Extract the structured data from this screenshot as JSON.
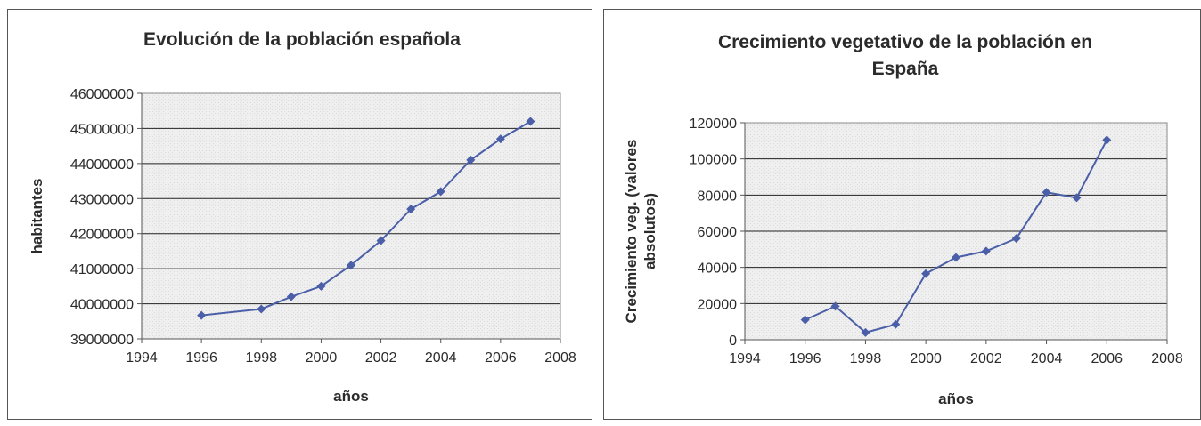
{
  "chart_data": [
    {
      "type": "line",
      "title": "Evolución de la población española",
      "xlabel": "años",
      "ylabel": "habitantes",
      "xlim": [
        1994,
        2008
      ],
      "ylim": [
        39000000,
        46000000
      ],
      "xticks": [
        1994,
        1996,
        1998,
        2000,
        2002,
        2004,
        2006,
        2008
      ],
      "yticks": [
        39000000,
        40000000,
        41000000,
        42000000,
        43000000,
        44000000,
        45000000,
        46000000
      ],
      "grid": true,
      "series": [
        {
          "color": "#4a5fa8",
          "x": [
            1996,
            1998,
            1999,
            2000,
            2001,
            2002,
            2003,
            2004,
            2005,
            2006,
            2007
          ],
          "y": [
            39670000,
            39850000,
            40200000,
            40500000,
            41100000,
            41800000,
            42700000,
            43200000,
            44100000,
            44700000,
            45200000
          ]
        }
      ]
    },
    {
      "type": "line",
      "title": "Crecimiento vegetativo de la población en España",
      "title_lines": [
        "Crecimiento vegetativo de la población en",
        "España"
      ],
      "xlabel": "años",
      "ylabel": "Crecimiento veg. (valores absolutos)",
      "ylabel_lines": [
        "Crecimiento veg. (valores",
        "absolutos)"
      ],
      "xlim": [
        1994,
        2008
      ],
      "ylim": [
        0,
        120000
      ],
      "xticks": [
        1994,
        1996,
        1998,
        2000,
        2002,
        2004,
        2006,
        2008
      ],
      "yticks": [
        0,
        20000,
        40000,
        60000,
        80000,
        100000,
        120000
      ],
      "grid": true,
      "series": [
        {
          "color": "#4a5fa8",
          "x": [
            1996,
            1997,
            1998,
            1999,
            2000,
            2001,
            2002,
            2003,
            2004,
            2005,
            2006
          ],
          "y": [
            11000,
            18500,
            4000,
            8500,
            36500,
            45500,
            49000,
            56000,
            81500,
            78500,
            110500
          ]
        }
      ]
    }
  ]
}
